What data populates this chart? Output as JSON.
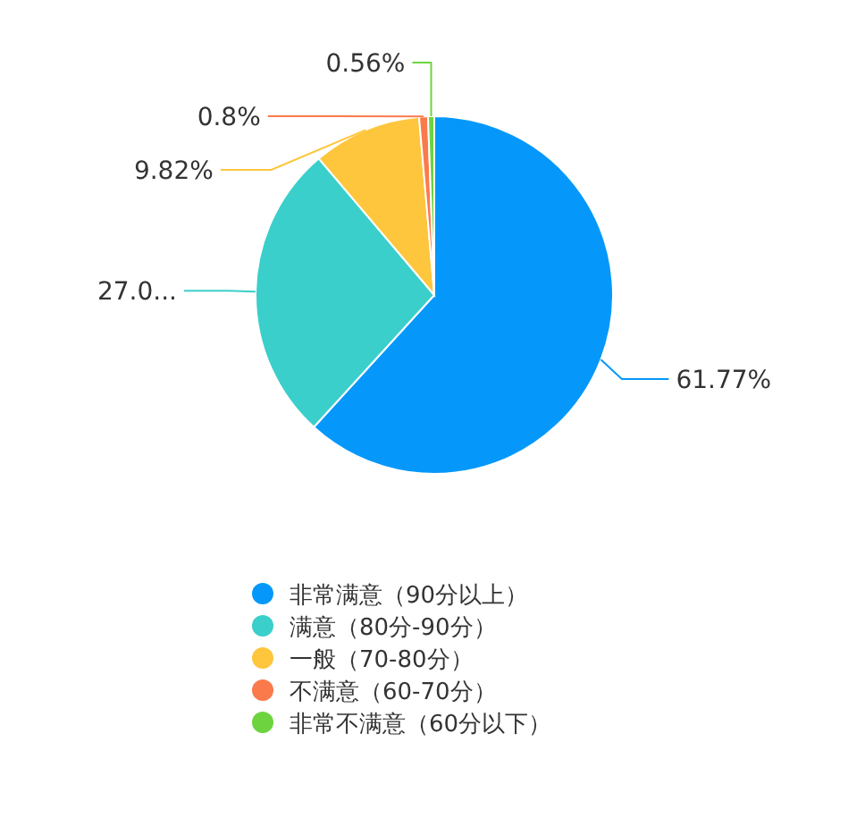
{
  "chart_data": {
    "type": "pie",
    "categories": [
      "非常满意（90分以上）",
      "满意（80分-90分）",
      "一般（70-80分）",
      "不满意（60-70分）",
      "非常不满意（60分以下）"
    ],
    "values": [
      61.77,
      27.05,
      9.82,
      0.8,
      0.56
    ],
    "colors": [
      "#0598fa",
      "#3acfca",
      "#fec63d",
      "#fb7a4c",
      "#6dd43f"
    ],
    "value_labels": [
      "61.77%",
      "27.0...",
      "9.82%",
      "0.8%",
      "0.56%"
    ],
    "legend": "bottom"
  }
}
